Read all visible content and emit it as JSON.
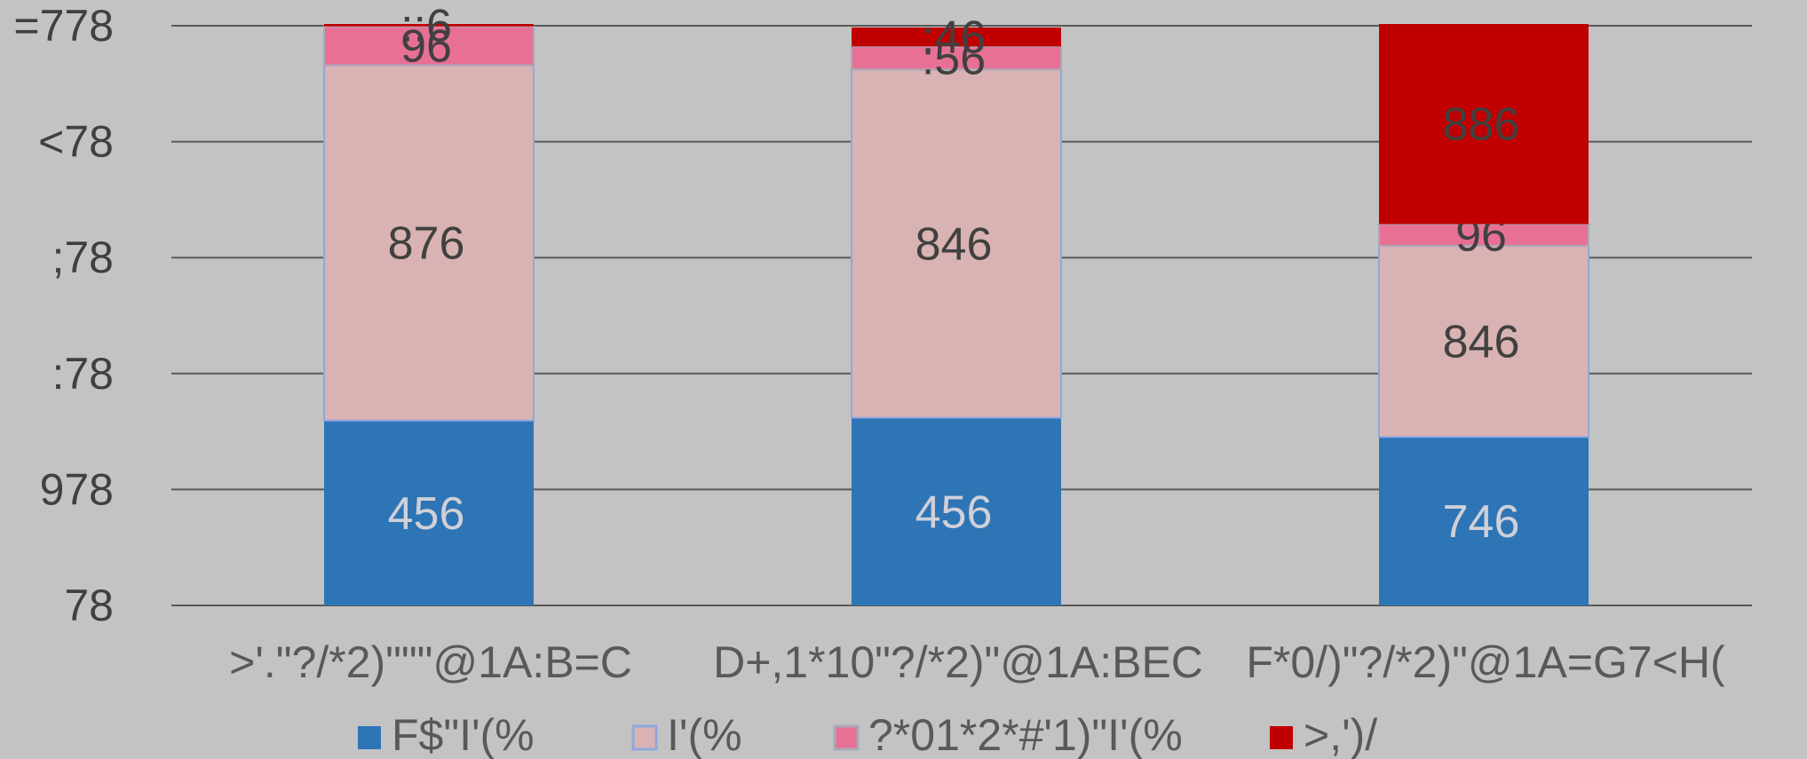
{
  "chart_data": {
    "type": "bar",
    "stacked": true,
    "categories": [
      ">'.\"?/*2)\"\"\"@1A:B=C",
      "D+,1*10\"?/*2)\"@1A:BEC",
      "F*0/)\"?/*2)\"@1A=G7<H("
    ],
    "series": [
      {
        "name": "F$\"I'(%",
        "color": "#2e75b6",
        "values": [
          456,
          456,
          746
        ],
        "labels": [
          "456",
          "456",
          "746"
        ]
      },
      {
        "name": "I'(%",
        "color": "#d9b3b3",
        "values": [
          876,
          846,
          846
        ],
        "labels": [
          "876",
          "846",
          "846"
        ]
      },
      {
        "name": "?*01*2*#'1)\"I'(%",
        "color": "#e87095",
        "values": [
          96,
          56,
          96
        ],
        "labels": [
          "96",
          ":56",
          "96"
        ]
      },
      {
        "name": ">,')/",
        "color": "#c00000",
        "values": [
          6,
          46,
          886
        ],
        "labels": [
          "::6",
          ":46",
          "886"
        ]
      }
    ],
    "yticks": [
      "78",
      "978",
      ":78",
      ";78",
      "<78",
      "=778"
    ],
    "grid": true,
    "legend": "bottom"
  }
}
